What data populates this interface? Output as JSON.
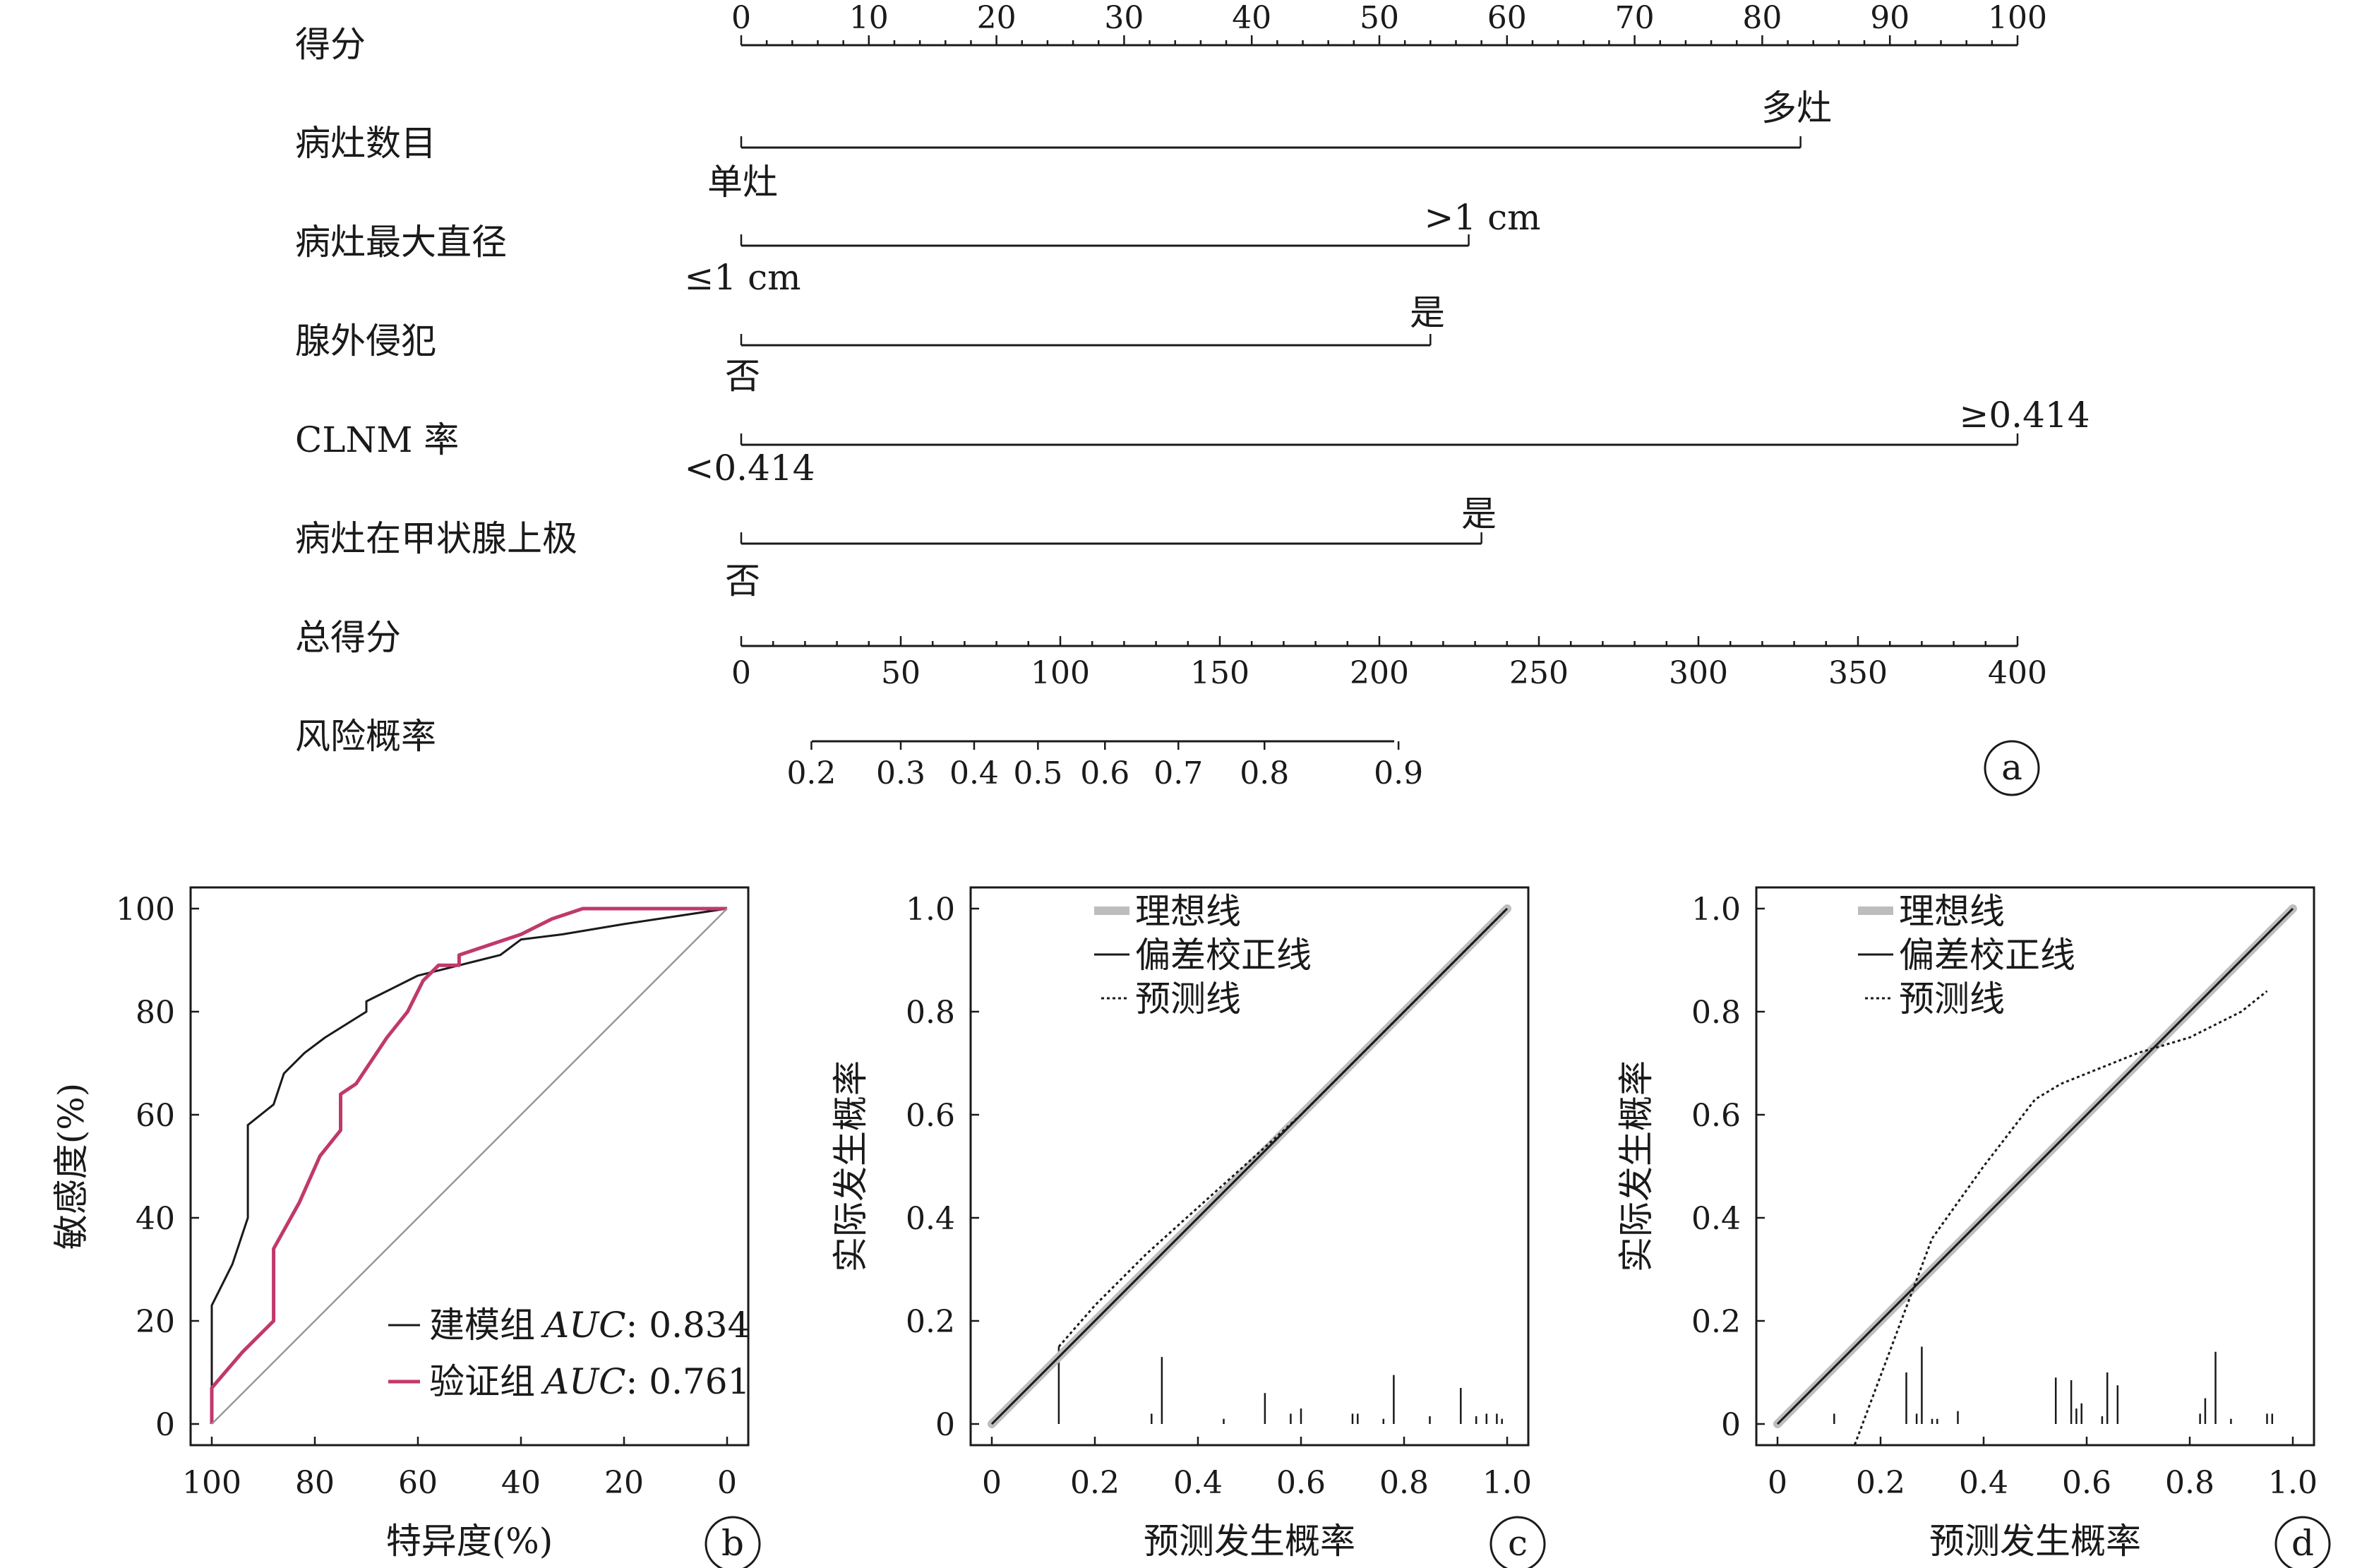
{
  "nomogram": {
    "badge": "a",
    "points_row": {
      "label": "得分",
      "ticks": [
        "0",
        "10",
        "20",
        "30",
        "40",
        "50",
        "60",
        "70",
        "80",
        "90",
        "100"
      ]
    },
    "variables": [
      {
        "label": "病灶数目",
        "low_label": "单灶",
        "high_label": "多灶",
        "points": 83
      },
      {
        "label": "病灶最大直径",
        "low_label": "≤1 cm",
        "high_label": ">1 cm",
        "points": 57
      },
      {
        "label": "腺外侵犯",
        "low_label": "否",
        "high_label": "是",
        "points": 54
      },
      {
        "label": "CLNM 率",
        "low_label": "<0.414",
        "high_label": "≥0.414",
        "points": 100
      },
      {
        "label": "病灶在甲状腺上极",
        "low_label": "否",
        "high_label": "是",
        "points": 58
      }
    ],
    "total_row": {
      "label": "总得分",
      "ticks": [
        "0",
        "50",
        "100",
        "150",
        "200",
        "250",
        "300",
        "350",
        "400"
      ]
    },
    "risk_row": {
      "label": "风险概率",
      "ticks": [
        "0.2",
        "0.3",
        "0.4",
        "0.5",
        "0.6",
        "0.7",
        "0.8",
        "0.9"
      ],
      "positions": [
        11,
        25,
        36.5,
        46.5,
        57,
        68.5,
        82,
        103
      ]
    }
  },
  "chart_data": [
    {
      "type": "line",
      "panel": "b",
      "xlabel": "特异度(%)",
      "ylabel": "敏感度(%)",
      "xlim": [
        100,
        0
      ],
      "ylim": [
        0,
        100
      ],
      "xticks": [
        "100",
        "80",
        "60",
        "40",
        "20",
        "0"
      ],
      "yticks": [
        "0",
        "20",
        "40",
        "60",
        "80",
        "100"
      ],
      "legend_position": "bottom-right",
      "series": [
        {
          "name": "建模组",
          "auc_label": "AUC",
          "auc": ": 0.834",
          "color": "#1a1a1a",
          "x": [
            100,
            100,
            96,
            93,
            93,
            88,
            86,
            82,
            78,
            70,
            70,
            60,
            52,
            48,
            44,
            40,
            32,
            20,
            0
          ],
          "y": [
            0,
            23,
            31,
            40,
            58,
            62,
            68,
            72,
            75,
            80,
            82,
            87,
            89,
            90,
            91,
            94,
            95,
            97,
            100
          ]
        },
        {
          "name": "验证组",
          "auc_label": "AUC",
          "auc": ": 0.761",
          "color": "#c0396b",
          "x": [
            100,
            100,
            94,
            88,
            88,
            83,
            79,
            75,
            75,
            72,
            66,
            62,
            59,
            56,
            52,
            52,
            46,
            40,
            34,
            28,
            0
          ],
          "y": [
            0,
            7,
            14,
            20,
            34,
            43,
            52,
            57,
            64,
            66,
            75,
            80,
            86,
            89,
            89,
            91,
            93,
            95,
            98,
            100,
            100
          ]
        },
        {
          "name": "",
          "color": "#999999",
          "x": [
            100,
            0
          ],
          "y": [
            0,
            100
          ]
        }
      ]
    },
    {
      "type": "line",
      "panel": "c",
      "xlabel": "预测发生概率",
      "ylabel": "实际发生概率",
      "xlim": [
        0,
        1
      ],
      "ylim": [
        0,
        1
      ],
      "xticks": [
        "0",
        "0.2",
        "0.4",
        "0.6",
        "0.8",
        "1.0"
      ],
      "yticks": [
        "0",
        "0.2",
        "0.4",
        "0.6",
        "0.8",
        "1.0"
      ],
      "legend": [
        "理想线",
        "偏差校正线",
        "预测线"
      ],
      "ideal": {
        "x": [
          0,
          1
        ],
        "y": [
          0,
          1
        ]
      },
      "bias_corrected": {
        "x": [
          0,
          1
        ],
        "y": [
          0,
          1
        ]
      },
      "predicted": {
        "x": [
          0.13,
          0.2,
          0.3,
          0.4,
          0.5,
          0.6,
          0.7,
          0.8,
          0.9,
          1.0
        ],
        "y": [
          0.15,
          0.23,
          0.33,
          0.42,
          0.51,
          0.6,
          0.7,
          0.8,
          0.9,
          1.0
        ]
      },
      "rug": [
        [
          0.13,
          0.15
        ],
        [
          0.31,
          0.02
        ],
        [
          0.33,
          0.13
        ],
        [
          0.45,
          0.01
        ],
        [
          0.53,
          0.06
        ],
        [
          0.58,
          0.02
        ],
        [
          0.6,
          0.03
        ],
        [
          0.7,
          0.02
        ],
        [
          0.71,
          0.02
        ],
        [
          0.76,
          0.01
        ],
        [
          0.78,
          0.095
        ],
        [
          0.85,
          0.015
        ],
        [
          0.91,
          0.07
        ],
        [
          0.94,
          0.015
        ],
        [
          0.96,
          0.02
        ],
        [
          0.98,
          0.02
        ],
        [
          0.99,
          0.01
        ]
      ]
    },
    {
      "type": "line",
      "panel": "d",
      "xlabel": "预测发生概率",
      "ylabel": "实际发生概率",
      "xlim": [
        0,
        1
      ],
      "ylim": [
        0,
        1
      ],
      "xticks": [
        "0",
        "0.2",
        "0.4",
        "0.6",
        "0.8",
        "1.0"
      ],
      "yticks": [
        "0",
        "0.2",
        "0.4",
        "0.6",
        "0.8",
        "1.0"
      ],
      "legend": [
        "理想线",
        "偏差校正线",
        "预测线"
      ],
      "ideal": {
        "x": [
          0,
          1
        ],
        "y": [
          0,
          1
        ]
      },
      "bias_corrected": {
        "x": [
          0,
          1
        ],
        "y": [
          0,
          1
        ]
      },
      "predicted": {
        "x": [
          0.15,
          0.3,
          0.4,
          0.5,
          0.55,
          0.6,
          0.7,
          0.8,
          0.9,
          0.95
        ],
        "y": [
          -0.04,
          0.36,
          0.5,
          0.63,
          0.66,
          0.68,
          0.72,
          0.75,
          0.8,
          0.84
        ]
      },
      "rug": [
        [
          0.11,
          0.02
        ],
        [
          0.25,
          0.1
        ],
        [
          0.27,
          0.02
        ],
        [
          0.28,
          0.15
        ],
        [
          0.3,
          0.01
        ],
        [
          0.31,
          0.01
        ],
        [
          0.35,
          0.025
        ],
        [
          0.54,
          0.09
        ],
        [
          0.57,
          0.085
        ],
        [
          0.58,
          0.03
        ],
        [
          0.59,
          0.04
        ],
        [
          0.63,
          0.015
        ],
        [
          0.64,
          0.1
        ],
        [
          0.66,
          0.075
        ],
        [
          0.82,
          0.02
        ],
        [
          0.83,
          0.05
        ],
        [
          0.85,
          0.14
        ],
        [
          0.88,
          0.01
        ],
        [
          0.95,
          0.02
        ],
        [
          0.96,
          0.02
        ]
      ]
    }
  ],
  "badges": {
    "b": "b",
    "c": "c",
    "d": "d"
  }
}
